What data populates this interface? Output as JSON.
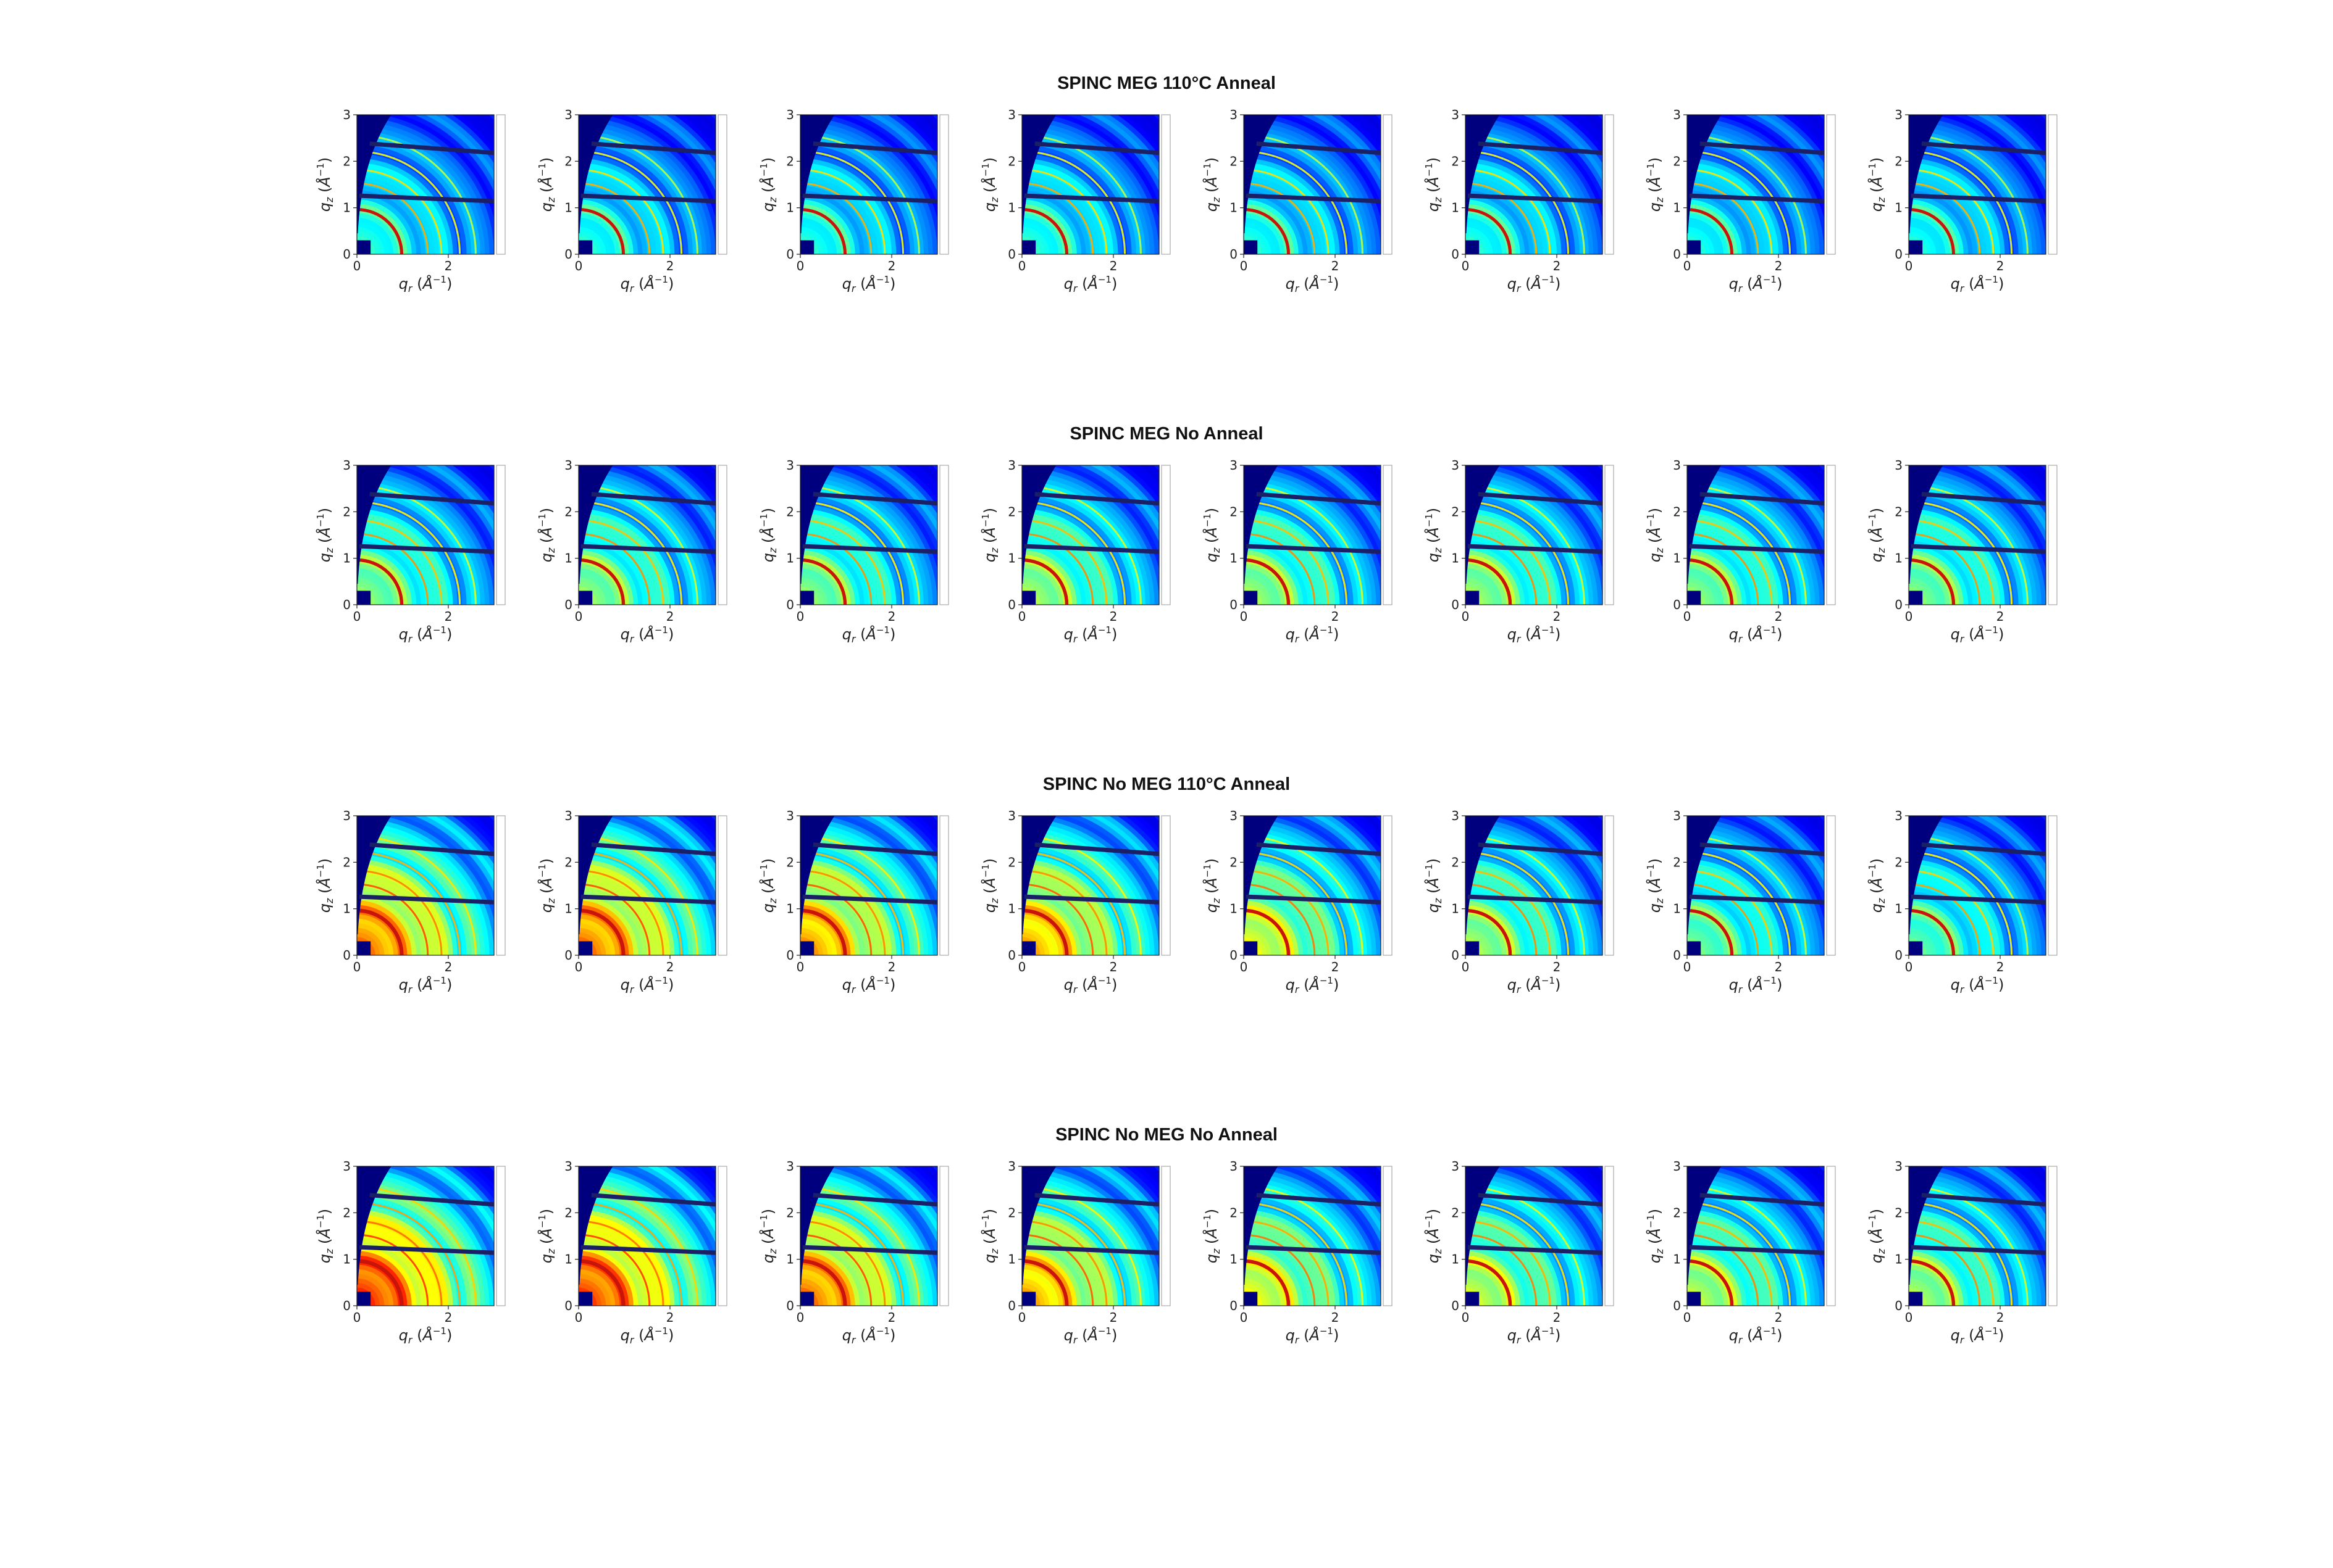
{
  "figure": {
    "rows": [
      {
        "title": "SPINC MEG 110°C Anneal"
      },
      {
        "title": "SPINC MEG No Anneal"
      },
      {
        "title": "SPINC No MEG 110°C Anneal"
      },
      {
        "title": "SPINC No MEG No Anneal"
      }
    ]
  },
  "chart_data": {
    "type": "heatmap",
    "description_of_panels": "GIWAXS detector maps",
    "grid": {
      "rows": 4,
      "columns": 8
    },
    "axes": {
      "xlabel": "q_r (Å^-1)",
      "ylabel": "q_z (Å^-1)",
      "xlim": [
        0,
        3
      ],
      "ylim": [
        0,
        3
      ],
      "xticks": [
        "0",
        "2"
      ],
      "yticks": [
        "0",
        "1",
        "2",
        "3"
      ]
    },
    "colormap": "jet",
    "panels": [
      {
        "row_title": "SPINC MEG 110°C Anneal",
        "intensity": [
          0.35,
          0.34,
          0.34,
          0.35,
          0.34,
          0.34,
          0.33,
          0.33
        ]
      },
      {
        "row_title": "SPINC MEG No Anneal",
        "intensity": [
          0.45,
          0.46,
          0.45,
          0.48,
          0.47,
          0.47,
          0.45,
          0.44
        ]
      },
      {
        "row_title": "SPINC No MEG 110°C Anneal",
        "intensity": [
          0.72,
          0.72,
          0.68,
          0.66,
          0.55,
          0.48,
          0.42,
          0.4
        ]
      },
      {
        "row_title": "SPINC No MEG No Anneal",
        "intensity": [
          0.8,
          0.78,
          0.72,
          0.66,
          0.56,
          0.52,
          0.5,
          0.48
        ]
      }
    ]
  }
}
